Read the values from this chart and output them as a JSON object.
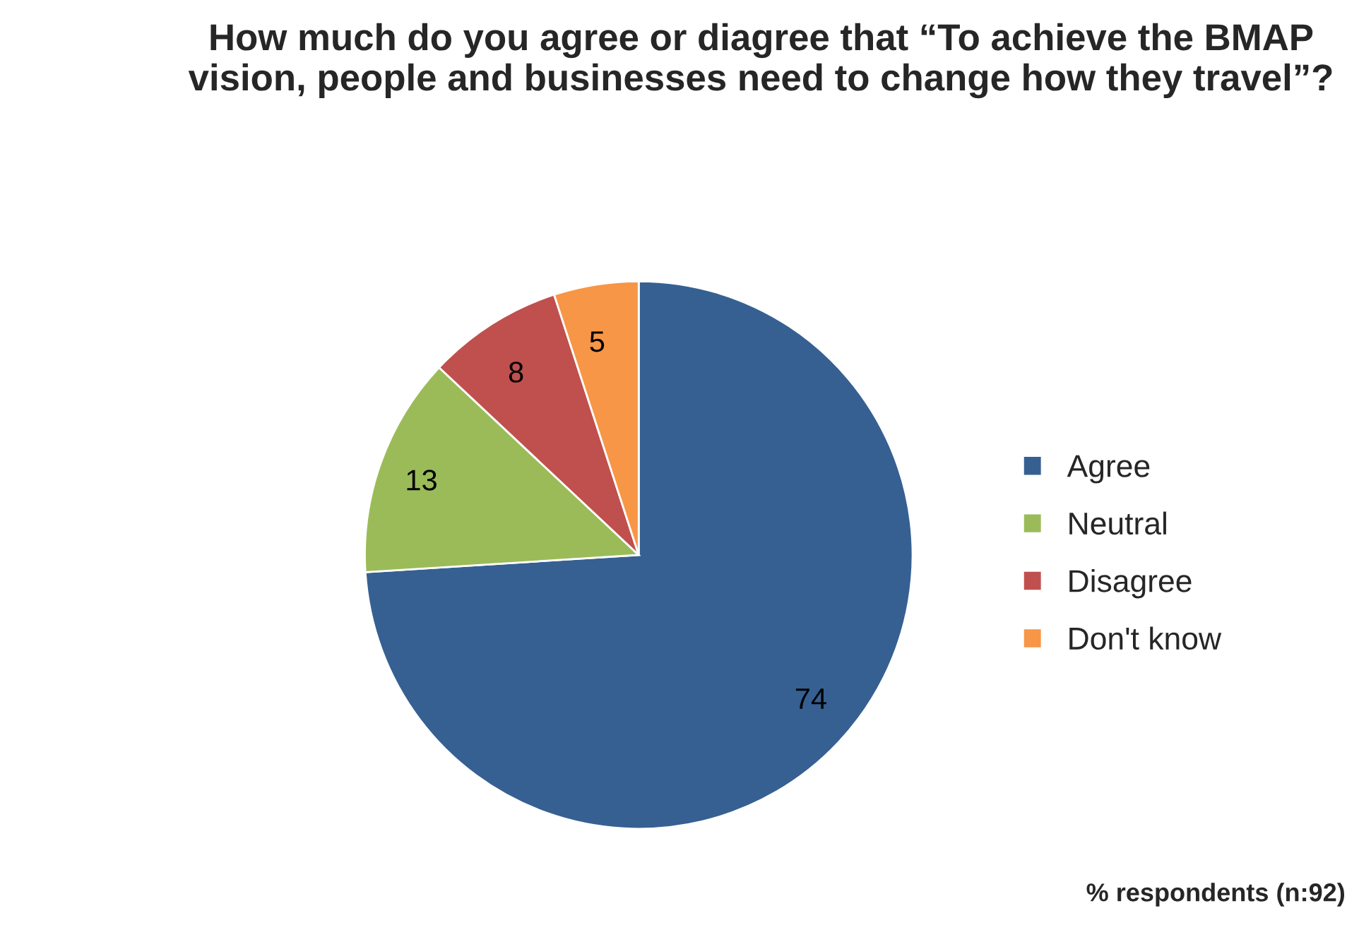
{
  "chart_data": {
    "type": "pie",
    "title": "How much do you agree or diagree that “To achieve the BMAP vision, people and businesses need to change how they travel”?",
    "categories": [
      "Agree",
      "Neutral",
      "Disagree",
      "Don't know"
    ],
    "values": [
      74,
      13,
      8,
      5
    ],
    "colors": [
      "#366092",
      "#9bbb59",
      "#c0504d",
      "#f79646"
    ],
    "data_labels": true,
    "legend": "right",
    "annotations": [
      "% respondents (n:92)"
    ]
  }
}
